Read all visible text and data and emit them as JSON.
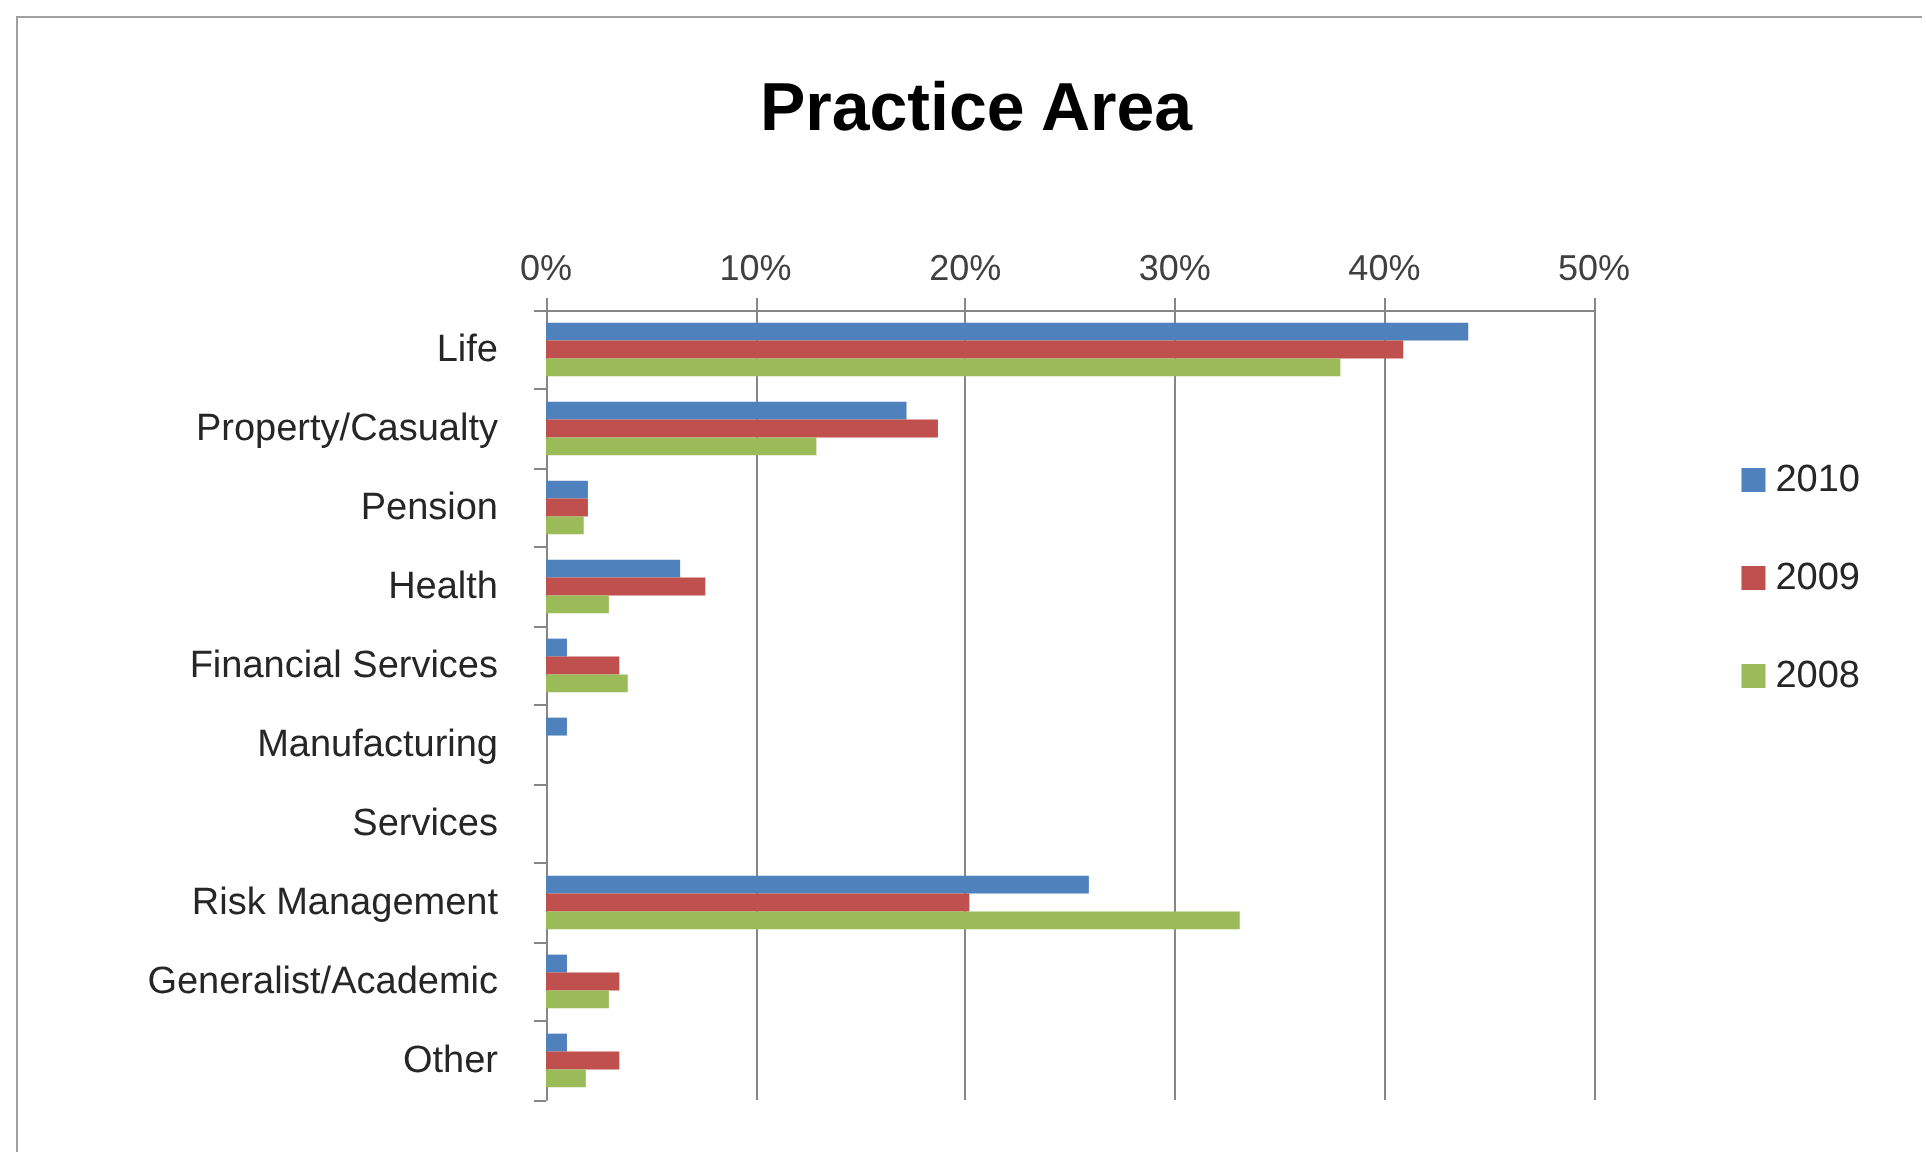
{
  "chart_data": {
    "type": "bar",
    "orientation": "horizontal",
    "title": "Practice Area",
    "categories": [
      "Life",
      "Property/Casualty",
      "Pension",
      "Health",
      "Financial Services",
      "Manufacturing",
      "Services",
      "Risk Management",
      "Generalist/Academic",
      "Other"
    ],
    "series": [
      {
        "name": "2010",
        "color": "#4f81bd",
        "values": [
          44,
          17.2,
          2,
          6.4,
          1,
          1,
          0,
          25.9,
          1,
          1
        ]
      },
      {
        "name": "2009",
        "color": "#c0504d",
        "values": [
          40.9,
          18.7,
          2,
          7.6,
          3.5,
          0,
          0,
          20.2,
          3.5,
          3.5
        ]
      },
      {
        "name": "2008",
        "color": "#9bbb59",
        "values": [
          37.9,
          12.9,
          1.8,
          3,
          3.9,
          0,
          0,
          33.1,
          3,
          1.9
        ]
      }
    ],
    "xlim": [
      0,
      50
    ],
    "xticks": [
      {
        "value": 0,
        "label": "0%"
      },
      {
        "value": 10,
        "label": "10%"
      },
      {
        "value": 20,
        "label": "20%"
      },
      {
        "value": 30,
        "label": "30%"
      },
      {
        "value": 40,
        "label": "40%"
      },
      {
        "value": 50,
        "label": "50%"
      }
    ],
    "grid": "x",
    "legend": "right"
  }
}
